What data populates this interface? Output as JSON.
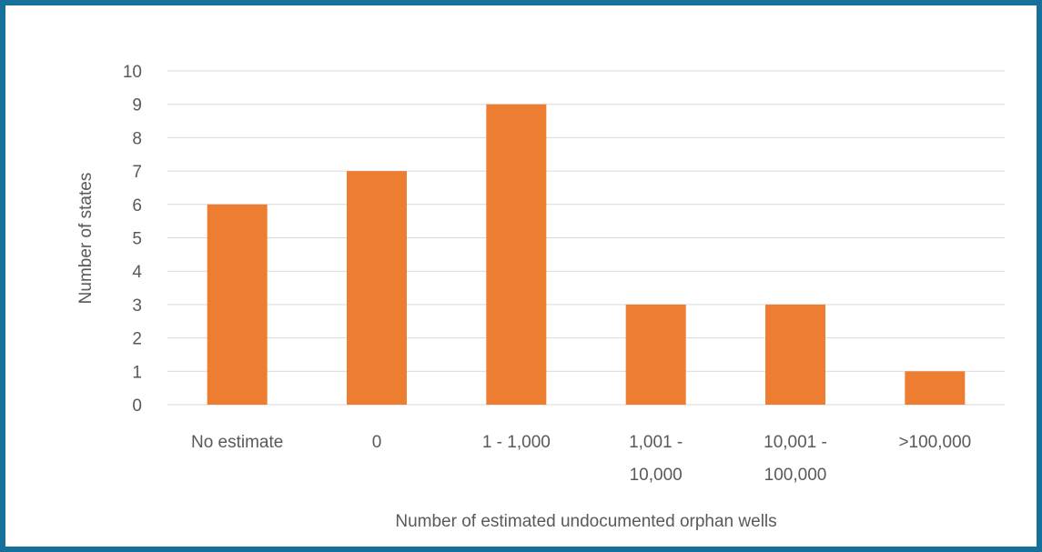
{
  "chart_data": {
    "type": "bar",
    "categories": [
      [
        "No estimate"
      ],
      [
        "0"
      ],
      [
        "1 - 1,000"
      ],
      [
        "1,001 -",
        "10,000"
      ],
      [
        "10,001 -",
        "100,000"
      ],
      [
        ">100,000"
      ]
    ],
    "values": [
      6,
      7,
      9,
      3,
      3,
      1
    ],
    "xlabel": "Number of estimated undocumented orphan wells",
    "ylabel": "Number of states",
    "ylim": [
      0,
      10
    ],
    "yticks": [
      0,
      1,
      2,
      3,
      4,
      5,
      6,
      7,
      8,
      9,
      10
    ],
    "grid": true,
    "legend": "none",
    "colors": {
      "bar": "#ed7d31",
      "frame": "#15719b",
      "gridline": "#d9d9d9",
      "text": "#595959"
    }
  }
}
